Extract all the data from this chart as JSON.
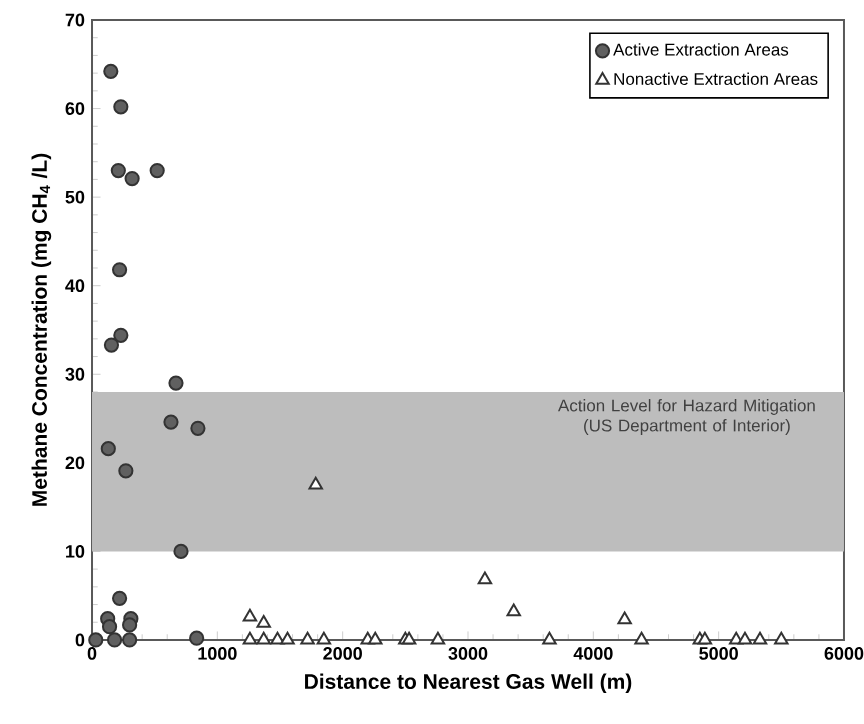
{
  "chart_data": {
    "type": "scatter",
    "xlabel": "Distance to Nearest Gas Well (m)",
    "ylabel": "Methane Concentration (mg CH$_{4}$ /L)",
    "xlim": [
      0,
      6000
    ],
    "ylim": [
      0,
      70
    ],
    "xticks": [
      0,
      1000,
      2000,
      3000,
      4000,
      5000,
      6000
    ],
    "yticks": [
      0,
      10,
      20,
      30,
      40,
      50,
      60,
      70
    ],
    "legend": "top right",
    "grid": false,
    "bands": [
      {
        "axis": "y",
        "from": 10,
        "to": 28,
        "label": "Action Level for Hazard Mitigation (US Department of Interior)",
        "color": "#bdbdbd"
      }
    ],
    "series": [
      {
        "name": "Active Extraction Areas",
        "color": "#606060",
        "marker": "circle",
        "x": [
          150,
          230,
          210,
          320,
          520,
          220,
          155,
          230,
          670,
          630,
          845,
          130,
          270,
          710,
          220,
          125,
          310,
          30,
          140,
          180,
          300,
          300,
          835
        ],
        "values": [
          64.2,
          60.2,
          53,
          52.1,
          53,
          41.8,
          33.3,
          34.4,
          29,
          24.6,
          23.9,
          21.6,
          19.1,
          10,
          4.7,
          2.4,
          2.4,
          0,
          1.5,
          0,
          0,
          1.7,
          0.2
        ]
      },
      {
        "name": "Nonactive Extraction Areas",
        "color": "#ffffff",
        "marker": "triangle",
        "x": [
          1785,
          1260,
          1370,
          1260,
          1370,
          1480,
          1560,
          1720,
          1850,
          2200,
          2260,
          2500,
          2530,
          2760,
          3135,
          3365,
          3650,
          4250,
          4385,
          4850,
          4890,
          5140,
          5210,
          5330,
          5500
        ],
        "values": [
          17.5,
          2.6,
          1.9,
          0,
          0,
          0,
          0,
          0,
          0,
          0,
          0,
          0,
          0,
          0,
          6.8,
          3.2,
          0,
          2.3,
          0,
          0,
          0,
          0,
          0,
          0,
          0
        ]
      }
    ]
  }
}
